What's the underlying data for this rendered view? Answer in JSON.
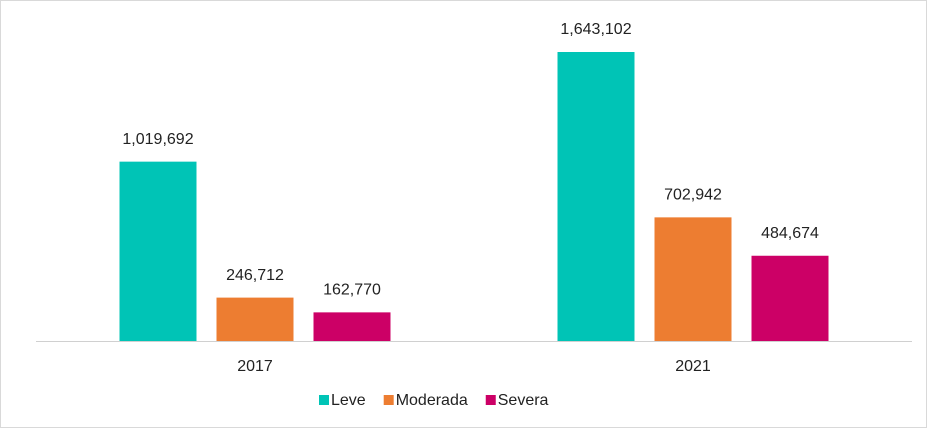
{
  "chart_data": {
    "type": "bar",
    "categories": [
      "2017",
      "2021"
    ],
    "series": [
      {
        "name": "Leve",
        "color": "#00c4b6",
        "values": [
          1019692,
          1643102
        ],
        "value_labels": [
          "1,019,692",
          "1,643,102"
        ]
      },
      {
        "name": "Moderada",
        "color": "#ed7d31",
        "values": [
          246712,
          702942
        ],
        "value_labels": [
          "246,712",
          "702,942"
        ]
      },
      {
        "name": "Severa",
        "color": "#cc0066",
        "values": [
          162770,
          484674
        ],
        "value_labels": [
          "162,770",
          "484,674"
        ]
      }
    ]
  }
}
